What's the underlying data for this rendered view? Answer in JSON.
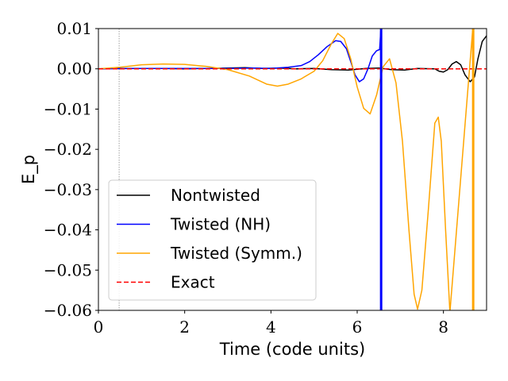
{
  "chart_data": {
    "type": "line",
    "xlabel": "Time (code units)",
    "ylabel": "E_p",
    "xlim": [
      0,
      9
    ],
    "ylim": [
      -0.06,
      0.01
    ],
    "xticks": [
      0,
      2,
      4,
      6,
      8
    ],
    "xtick_labels": [
      "0",
      "2",
      "4",
      "6",
      "8"
    ],
    "yticks": [
      0.01,
      0.0,
      -0.01,
      -0.02,
      -0.03,
      -0.04,
      -0.05,
      -0.06
    ],
    "ytick_labels": [
      "0.01",
      "0.00",
      "−0.01",
      "−0.02",
      "−0.03",
      "−0.04",
      "−0.05",
      "−0.06"
    ],
    "grid": false,
    "legend_position": "lower-left",
    "reference_line": {
      "x": 0.48,
      "style": "dotted",
      "color": "#888888"
    },
    "series": [
      {
        "name": "Nontwisted",
        "color": "#000000",
        "dash": "solid",
        "points": [
          [
            0,
            0.0
          ],
          [
            0.5,
            0.0001
          ],
          [
            1,
            0.0001
          ],
          [
            1.5,
            0.0001
          ],
          [
            2,
            0.0
          ],
          [
            2.5,
            0.0001
          ],
          [
            3,
            0.0002
          ],
          [
            3.4,
            0.0003
          ],
          [
            3.8,
            0.0001
          ],
          [
            4.2,
            0.0002
          ],
          [
            4.6,
            0.0
          ],
          [
            5,
            0.0001
          ],
          [
            5.4,
            -0.0002
          ],
          [
            5.8,
            -0.0003
          ],
          [
            6.2,
            0.0001
          ],
          [
            6.5,
            0.0002
          ],
          [
            6.8,
            -0.0002
          ],
          [
            7.1,
            -0.0003
          ],
          [
            7.4,
            0.0001
          ],
          [
            7.8,
            0.0
          ],
          [
            7.9,
            -0.0006
          ],
          [
            8.0,
            -0.0008
          ],
          [
            8.1,
            -0.0002
          ],
          [
            8.2,
            0.0012
          ],
          [
            8.3,
            0.0018
          ],
          [
            8.4,
            0.001
          ],
          [
            8.5,
            -0.0015
          ],
          [
            8.62,
            -0.0032
          ],
          [
            8.72,
            -0.002
          ],
          [
            8.8,
            0.0025
          ],
          [
            8.9,
            0.0068
          ],
          [
            9.0,
            0.0082
          ]
        ]
      },
      {
        "name": "Twisted (NH)",
        "color": "#0000ff",
        "dash": "solid",
        "points": [
          [
            0,
            0.0
          ],
          [
            1,
            0.0001
          ],
          [
            2,
            0.0001
          ],
          [
            3,
            0.0001
          ],
          [
            3.6,
            0.0002
          ],
          [
            4,
            0.0001
          ],
          [
            4.4,
            0.0004
          ],
          [
            4.7,
            0.0008
          ],
          [
            4.9,
            0.0018
          ],
          [
            5.1,
            0.0035
          ],
          [
            5.3,
            0.0055
          ],
          [
            5.5,
            0.007
          ],
          [
            5.62,
            0.0068
          ],
          [
            5.75,
            0.005
          ],
          [
            5.85,
            0.0018
          ],
          [
            5.95,
            -0.0015
          ],
          [
            6.05,
            -0.0032
          ],
          [
            6.15,
            -0.0025
          ],
          [
            6.25,
            0.0
          ],
          [
            6.35,
            0.0032
          ],
          [
            6.45,
            0.0045
          ],
          [
            6.52,
            0.0048
          ],
          [
            6.55,
            0.01
          ],
          [
            6.555,
            -0.06
          ]
        ]
      },
      {
        "name": "Twisted (Symm.)",
        "color": "#ffa500",
        "dash": "solid",
        "points": [
          [
            0,
            0.0
          ],
          [
            0.5,
            0.0004
          ],
          [
            1,
            0.001
          ],
          [
            1.5,
            0.0012
          ],
          [
            2,
            0.0011
          ],
          [
            2.5,
            0.0006
          ],
          [
            3,
            -0.0002
          ],
          [
            3.5,
            -0.0018
          ],
          [
            3.9,
            -0.0038
          ],
          [
            4.15,
            -0.0043
          ],
          [
            4.4,
            -0.0038
          ],
          [
            4.7,
            -0.0025
          ],
          [
            5.0,
            -0.0006
          ],
          [
            5.2,
            0.002
          ],
          [
            5.4,
            0.0062
          ],
          [
            5.55,
            0.0088
          ],
          [
            5.7,
            0.0075
          ],
          [
            5.85,
            0.0025
          ],
          [
            6.0,
            -0.0045
          ],
          [
            6.15,
            -0.0098
          ],
          [
            6.3,
            -0.0112
          ],
          [
            6.45,
            -0.0065
          ],
          [
            6.6,
            0.0005
          ],
          [
            6.75,
            0.0025
          ],
          [
            6.9,
            -0.0035
          ],
          [
            7.05,
            -0.018
          ],
          [
            7.2,
            -0.04
          ],
          [
            7.32,
            -0.056
          ],
          [
            7.4,
            -0.0597
          ],
          [
            7.5,
            -0.055
          ],
          [
            7.65,
            -0.035
          ],
          [
            7.8,
            -0.0135
          ],
          [
            7.88,
            -0.012
          ],
          [
            7.95,
            -0.018
          ],
          [
            8.05,
            -0.04
          ],
          [
            8.15,
            -0.0605
          ],
          [
            8.68,
            0.01
          ],
          [
            8.69,
            -0.06
          ]
        ]
      },
      {
        "name": "Exact",
        "color": "#ff0000",
        "dash": "dashed",
        "points": [
          [
            0,
            0.0
          ],
          [
            9,
            0.0
          ]
        ]
      }
    ]
  }
}
